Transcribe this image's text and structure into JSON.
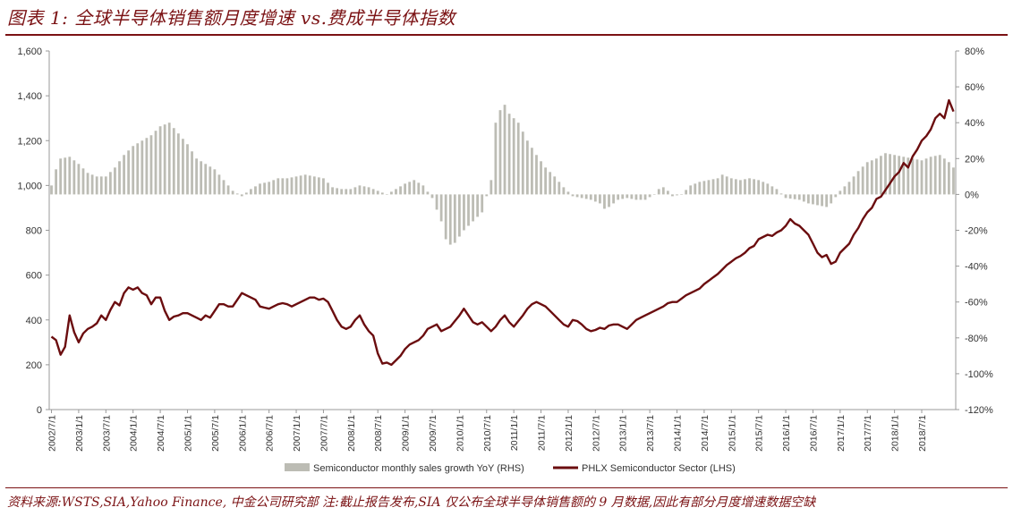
{
  "title": "图表 1:  全球半导体销售额月度增速 vs.费成半导体指数",
  "source": "资料来源:WSTS,SIA,Yahoo Finance, 中金公司研究部     注:截止报告发布,SIA 仅公布全球半导体销售额的 9 月数据,因此有部分月度增速数据空缺",
  "chart_data": {
    "type": "bar+line",
    "left_axis": {
      "ylim": [
        0,
        1600
      ],
      "ticks": [
        "0",
        "200",
        "400",
        "600",
        "800",
        "1,000",
        "1,200",
        "1,400",
        "1,600"
      ],
      "tick_values": [
        0,
        200,
        400,
        600,
        800,
        1000,
        1200,
        1400,
        1600
      ]
    },
    "right_axis": {
      "ylim": [
        -120,
        80
      ],
      "ticks": [
        "-120%",
        "-100%",
        "-80%",
        "-60%",
        "-40%",
        "-20%",
        "0%",
        "20%",
        "40%",
        "60%",
        "80%"
      ],
      "tick_values": [
        -120,
        -100,
        -80,
        -60,
        -40,
        -20,
        0,
        20,
        40,
        60,
        80
      ]
    },
    "x_ticks": [
      "2002/7/1",
      "2003/1/1",
      "2003/7/1",
      "2004/1/1",
      "2004/7/1",
      "2005/1/1",
      "2005/7/1",
      "2006/1/1",
      "2006/7/1",
      "2007/1/1",
      "2007/7/1",
      "2008/1/1",
      "2008/7/1",
      "2009/1/1",
      "2009/7/1",
      "2010/1/1",
      "2010/7/1",
      "2011/1/1",
      "2011/7/1",
      "2012/1/1",
      "2012/7/1",
      "2013/1/1",
      "2013/7/1",
      "2014/1/1",
      "2014/7/1",
      "2015/1/1",
      "2015/7/1",
      "2016/1/1",
      "2016/7/1",
      "2017/1/1",
      "2017/7/1",
      "2018/1/1",
      "2018/7/1"
    ],
    "series": [
      {
        "name": "Semiconductor monthly sales growth YoY (RHS)",
        "axis": "right",
        "color": "#bcbcb4",
        "anchors": [
          [
            0,
            5
          ],
          [
            1,
            14
          ],
          [
            2,
            20
          ],
          [
            4,
            21
          ],
          [
            6,
            17
          ],
          [
            8,
            12
          ],
          [
            10,
            10
          ],
          [
            12,
            10
          ],
          [
            14,
            15
          ],
          [
            16,
            22
          ],
          [
            18,
            27
          ],
          [
            20,
            30
          ],
          [
            22,
            33
          ],
          [
            24,
            38
          ],
          [
            26,
            40
          ],
          [
            28,
            34
          ],
          [
            30,
            28
          ],
          [
            32,
            20
          ],
          [
            34,
            17
          ],
          [
            36,
            14
          ],
          [
            38,
            8
          ],
          [
            40,
            2
          ],
          [
            42,
            -1
          ],
          [
            44,
            3
          ],
          [
            46,
            6
          ],
          [
            48,
            7
          ],
          [
            50,
            9
          ],
          [
            52,
            9
          ],
          [
            54,
            10
          ],
          [
            56,
            11
          ],
          [
            58,
            10
          ],
          [
            60,
            9
          ],
          [
            62,
            4
          ],
          [
            64,
            3
          ],
          [
            66,
            3
          ],
          [
            68,
            5
          ],
          [
            70,
            4
          ],
          [
            72,
            2
          ],
          [
            74,
            0
          ],
          [
            76,
            3
          ],
          [
            78,
            6
          ],
          [
            80,
            8
          ],
          [
            82,
            5
          ],
          [
            84,
            -2
          ],
          [
            86,
            -15
          ],
          [
            87,
            -25
          ],
          [
            88,
            -28
          ],
          [
            89,
            -27
          ],
          [
            91,
            -20
          ],
          [
            93,
            -15
          ],
          [
            95,
            -10
          ],
          [
            97,
            8
          ],
          [
            98,
            40
          ],
          [
            99,
            47
          ],
          [
            100,
            50
          ],
          [
            101,
            45
          ],
          [
            103,
            40
          ],
          [
            105,
            30
          ],
          [
            107,
            22
          ],
          [
            109,
            15
          ],
          [
            111,
            10
          ],
          [
            113,
            4
          ],
          [
            115,
            -1
          ],
          [
            117,
            -2
          ],
          [
            119,
            -3
          ],
          [
            121,
            -5
          ],
          [
            122,
            -8
          ],
          [
            123,
            -7
          ],
          [
            125,
            -3
          ],
          [
            127,
            -2
          ],
          [
            129,
            -3
          ],
          [
            131,
            -3
          ],
          [
            133,
            0
          ],
          [
            134,
            3
          ],
          [
            135,
            4
          ],
          [
            136,
            2
          ],
          [
            137,
            -1
          ],
          [
            139,
            0
          ],
          [
            141,
            5
          ],
          [
            143,
            7
          ],
          [
            145,
            8
          ],
          [
            147,
            9
          ],
          [
            148,
            11
          ],
          [
            150,
            9
          ],
          [
            152,
            8
          ],
          [
            154,
            9
          ],
          [
            156,
            8
          ],
          [
            158,
            6
          ],
          [
            160,
            3
          ],
          [
            162,
            -2
          ],
          [
            165,
            -3
          ],
          [
            167,
            -5
          ],
          [
            169,
            -6
          ],
          [
            171,
            -7
          ],
          [
            172,
            -5
          ],
          [
            174,
            2
          ],
          [
            176,
            7
          ],
          [
            178,
            13
          ],
          [
            180,
            18
          ],
          [
            182,
            20
          ],
          [
            184,
            23
          ],
          [
            186,
            22
          ],
          [
            188,
            21
          ],
          [
            190,
            20
          ],
          [
            192,
            19
          ],
          [
            194,
            21
          ],
          [
            196,
            22
          ],
          [
            198,
            18
          ],
          [
            199,
            15
          ]
        ],
        "months": 200
      },
      {
        "name": "PHLX Semiconductor Sector (LHS)",
        "axis": "left",
        "color": "#6b0d0f",
        "anchors": [
          [
            0,
            325
          ],
          [
            1,
            310
          ],
          [
            2,
            245
          ],
          [
            3,
            280
          ],
          [
            4,
            420
          ],
          [
            5,
            345
          ],
          [
            6,
            300
          ],
          [
            7,
            340
          ],
          [
            8,
            360
          ],
          [
            9,
            370
          ],
          [
            10,
            385
          ],
          [
            11,
            420
          ],
          [
            12,
            400
          ],
          [
            13,
            445
          ],
          [
            14,
            480
          ],
          [
            15,
            465
          ],
          [
            16,
            520
          ],
          [
            17,
            545
          ],
          [
            18,
            535
          ],
          [
            19,
            545
          ],
          [
            20,
            520
          ],
          [
            21,
            510
          ],
          [
            22,
            470
          ],
          [
            23,
            500
          ],
          [
            24,
            500
          ],
          [
            25,
            440
          ],
          [
            26,
            400
          ],
          [
            27,
            415
          ],
          [
            28,
            420
          ],
          [
            29,
            430
          ],
          [
            30,
            430
          ],
          [
            31,
            420
          ],
          [
            32,
            410
          ],
          [
            33,
            400
          ],
          [
            34,
            420
          ],
          [
            35,
            410
          ],
          [
            36,
            440
          ],
          [
            37,
            470
          ],
          [
            38,
            470
          ],
          [
            39,
            460
          ],
          [
            40,
            460
          ],
          [
            41,
            490
          ],
          [
            42,
            520
          ],
          [
            43,
            510
          ],
          [
            44,
            500
          ],
          [
            45,
            490
          ],
          [
            46,
            460
          ],
          [
            47,
            455
          ],
          [
            48,
            450
          ],
          [
            49,
            460
          ],
          [
            50,
            470
          ],
          [
            51,
            475
          ],
          [
            52,
            470
          ],
          [
            53,
            460
          ],
          [
            54,
            470
          ],
          [
            55,
            480
          ],
          [
            56,
            490
          ],
          [
            57,
            500
          ],
          [
            58,
            500
          ],
          [
            59,
            490
          ],
          [
            60,
            495
          ],
          [
            61,
            480
          ],
          [
            62,
            440
          ],
          [
            63,
            400
          ],
          [
            64,
            370
          ],
          [
            65,
            360
          ],
          [
            66,
            370
          ],
          [
            67,
            400
          ],
          [
            68,
            420
          ],
          [
            69,
            380
          ],
          [
            70,
            350
          ],
          [
            71,
            330
          ],
          [
            72,
            250
          ],
          [
            73,
            205
          ],
          [
            74,
            210
          ],
          [
            75,
            200
          ],
          [
            76,
            220
          ],
          [
            77,
            240
          ],
          [
            78,
            270
          ],
          [
            79,
            290
          ],
          [
            80,
            300
          ],
          [
            81,
            310
          ],
          [
            82,
            330
          ],
          [
            83,
            360
          ],
          [
            84,
            370
          ],
          [
            85,
            380
          ],
          [
            86,
            350
          ],
          [
            87,
            360
          ],
          [
            88,
            370
          ],
          [
            89,
            395
          ],
          [
            90,
            420
          ],
          [
            91,
            450
          ],
          [
            92,
            420
          ],
          [
            93,
            390
          ],
          [
            94,
            380
          ],
          [
            95,
            390
          ],
          [
            96,
            370
          ],
          [
            97,
            350
          ],
          [
            98,
            370
          ],
          [
            99,
            400
          ],
          [
            100,
            420
          ],
          [
            101,
            390
          ],
          [
            102,
            370
          ],
          [
            103,
            395
          ],
          [
            104,
            420
          ],
          [
            105,
            450
          ],
          [
            106,
            470
          ],
          [
            107,
            480
          ],
          [
            108,
            470
          ],
          [
            109,
            460
          ],
          [
            110,
            440
          ],
          [
            111,
            420
          ],
          [
            112,
            400
          ],
          [
            113,
            380
          ],
          [
            114,
            370
          ],
          [
            115,
            400
          ],
          [
            116,
            395
          ],
          [
            117,
            380
          ],
          [
            118,
            360
          ],
          [
            119,
            350
          ],
          [
            120,
            355
          ],
          [
            121,
            365
          ],
          [
            122,
            360
          ],
          [
            123,
            375
          ],
          [
            124,
            380
          ],
          [
            125,
            380
          ],
          [
            126,
            370
          ],
          [
            127,
            360
          ],
          [
            128,
            380
          ],
          [
            129,
            400
          ],
          [
            130,
            410
          ],
          [
            131,
            420
          ],
          [
            132,
            430
          ],
          [
            133,
            440
          ],
          [
            134,
            450
          ],
          [
            135,
            460
          ],
          [
            136,
            475
          ],
          [
            137,
            480
          ],
          [
            138,
            480
          ],
          [
            139,
            495
          ],
          [
            140,
            510
          ],
          [
            141,
            520
          ],
          [
            142,
            530
          ],
          [
            143,
            540
          ],
          [
            144,
            560
          ],
          [
            145,
            575
          ],
          [
            146,
            590
          ],
          [
            147,
            605
          ],
          [
            148,
            625
          ],
          [
            149,
            645
          ],
          [
            150,
            660
          ],
          [
            151,
            675
          ],
          [
            152,
            685
          ],
          [
            153,
            700
          ],
          [
            154,
            720
          ],
          [
            155,
            730
          ],
          [
            156,
            760
          ],
          [
            157,
            770
          ],
          [
            158,
            780
          ],
          [
            159,
            775
          ],
          [
            160,
            790
          ],
          [
            161,
            800
          ],
          [
            162,
            820
          ],
          [
            163,
            850
          ],
          [
            164,
            830
          ],
          [
            165,
            820
          ],
          [
            166,
            800
          ],
          [
            167,
            780
          ],
          [
            168,
            740
          ],
          [
            169,
            700
          ],
          [
            170,
            680
          ],
          [
            171,
            690
          ],
          [
            172,
            650
          ],
          [
            173,
            660
          ],
          [
            174,
            700
          ],
          [
            175,
            720
          ],
          [
            176,
            740
          ],
          [
            177,
            780
          ],
          [
            178,
            810
          ],
          [
            179,
            850
          ],
          [
            180,
            880
          ],
          [
            181,
            900
          ],
          [
            182,
            940
          ],
          [
            183,
            950
          ],
          [
            184,
            980
          ],
          [
            185,
            1010
          ],
          [
            186,
            1040
          ],
          [
            187,
            1060
          ],
          [
            188,
            1100
          ],
          [
            189,
            1080
          ],
          [
            190,
            1130
          ],
          [
            191,
            1160
          ],
          [
            192,
            1200
          ],
          [
            193,
            1220
          ],
          [
            194,
            1250
          ],
          [
            195,
            1300
          ],
          [
            196,
            1320
          ],
          [
            197,
            1300
          ],
          [
            198,
            1380
          ],
          [
            199,
            1330
          ]
        ],
        "months": 200
      }
    ],
    "legend_position": "bottom-center",
    "grid": false
  }
}
